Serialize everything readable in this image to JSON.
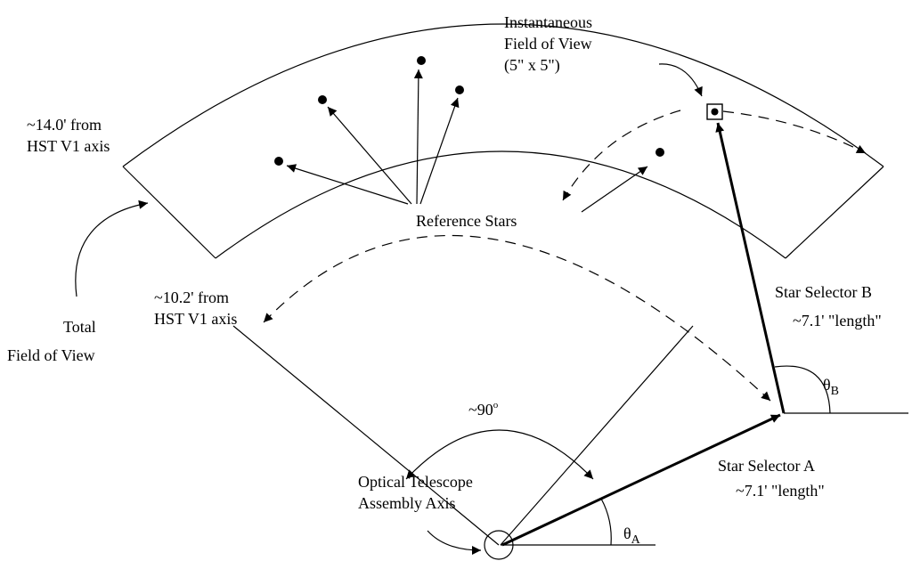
{
  "labels": {
    "outer_radius_l1": "~14.0' from",
    "outer_radius_l2": "HST V1 axis",
    "inner_radius_l1": "~10.2' from",
    "inner_radius_l2": "HST V1 axis",
    "ifov_l1": "Instantaneous",
    "ifov_l2": "Field of View",
    "ifov_l3": "(5\" x 5\")",
    "reference_stars": "Reference Stars",
    "total_fov_l1": "Total",
    "total_fov_l2": "Field of View",
    "angle_90": "~90",
    "angle_90_sup": "o",
    "ota_l1": "Optical Telescope",
    "ota_l2": "Assembly Axis",
    "selector_a_l1": "Star Selector A",
    "selector_a_l2": "~7.1' \"length\"",
    "selector_b_l1": "Star Selector B",
    "selector_b_l2": "~7.1' \"length\"",
    "theta": "θ",
    "theta_a_sub": "A",
    "theta_b_sub": "B"
  }
}
